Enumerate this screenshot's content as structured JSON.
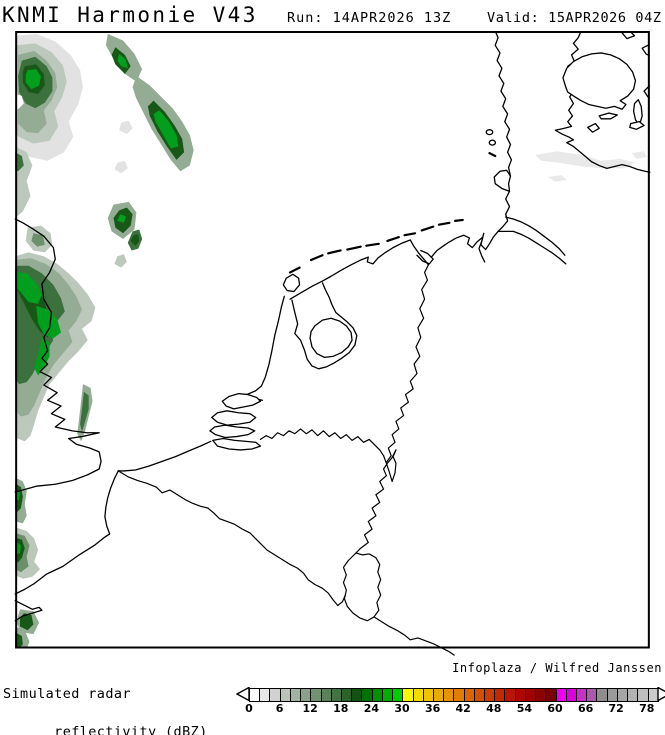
{
  "header": {
    "title": "KNMI Harmonie V43",
    "run_label": "Run: 14APR2026 13Z",
    "valid_label": "Valid: 15APR2026 04Z"
  },
  "attribution": "Infoplaza / Wilfred Janssen",
  "legend": {
    "line1": "Simulated radar",
    "line2": "reflectivity (dBZ)",
    "tick_labels": [
      0,
      6,
      12,
      18,
      24,
      30,
      36,
      42,
      48,
      54,
      60,
      66,
      72,
      78
    ],
    "dbz_per_cell": 2,
    "cells": [
      "#ffffff",
      "#e8e8e8",
      "#d2d2d2",
      "#bac2ba",
      "#a2b2a2",
      "#8aa28a",
      "#729272",
      "#5a825a",
      "#427242",
      "#2a622a",
      "#125212",
      "#007200",
      "#009000",
      "#00ae00",
      "#00cc00",
      "#f8f800",
      "#f2dc00",
      "#eec400",
      "#e8ac00",
      "#e49400",
      "#e07c00",
      "#da6400",
      "#d45000",
      "#cc3c00",
      "#c42800",
      "#bc1400",
      "#b40400",
      "#a00000",
      "#8c0000",
      "#780000",
      "#f000f0",
      "#dc00dc",
      "#c632c6",
      "#aa5aaa",
      "#8e8e8e",
      "#9a9a9a",
      "#a6a6a6",
      "#b2b2b2",
      "#bebebe",
      "#cacaca"
    ]
  },
  "map": {
    "frame_color": "#000000",
    "coast_color": "#000000",
    "sea_color": "#ffffff",
    "precip_levels": [
      {
        "dbz": "2-6",
        "color": "#e2e2e2"
      },
      {
        "dbz": "6-10",
        "color": "#bcc8bc"
      },
      {
        "dbz": "10-14",
        "color": "#93ac93"
      },
      {
        "dbz": "14-18",
        "color": "#6b906b"
      },
      {
        "dbz": "18-22",
        "color": "#3c703c"
      },
      {
        "dbz": "22-26",
        "color": "#175817"
      },
      {
        "dbz": "26-34",
        "color": "#00a01e"
      }
    ]
  }
}
